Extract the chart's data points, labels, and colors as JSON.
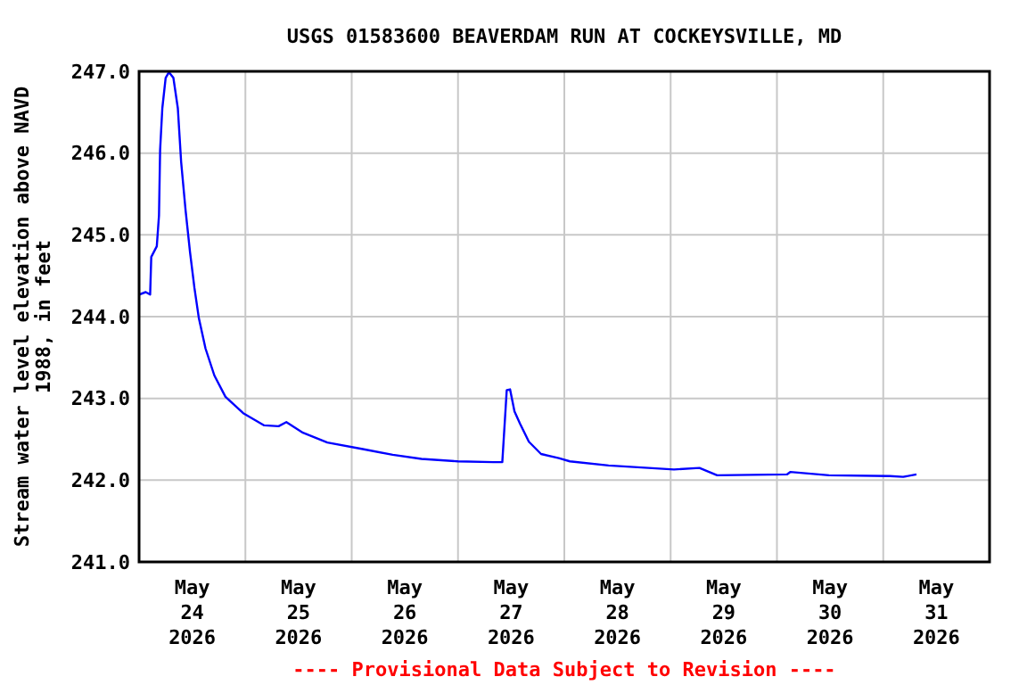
{
  "chart_data": {
    "type": "line",
    "title": "USGS 01583600 BEAVERDAM RUN AT COCKEYSVILLE, MD",
    "ylabel": "Stream water level elevation above NAVD\n1988, in feet",
    "annotations": [
      "---- Provisional Data Subject to Revision ----"
    ],
    "x": [
      "2026-05-24T00:00",
      "2026-05-24T01:30",
      "2026-05-24T02:30",
      "2026-05-24T02:45",
      "2026-05-24T04:00",
      "2026-05-24T04:30",
      "2026-05-24T04:45",
      "2026-05-24T05:15",
      "2026-05-24T06:00",
      "2026-05-24T06:45",
      "2026-05-24T07:45",
      "2026-05-24T08:45",
      "2026-05-24T09:30",
      "2026-05-24T10:30",
      "2026-05-24T11:30",
      "2026-05-24T12:30",
      "2026-05-24T13:30",
      "2026-05-24T15:00",
      "2026-05-24T17:00",
      "2026-05-24T19:30",
      "2026-05-24T23:30",
      "2026-05-25T04:15",
      "2026-05-25T07:30",
      "2026-05-25T09:15",
      "2026-05-25T13:00",
      "2026-05-25T18:30",
      "2026-05-26T02:30",
      "2026-05-26T09:15",
      "2026-05-26T15:45",
      "2026-05-27T00:00",
      "2026-05-27T08:00",
      "2026-05-27T10:00",
      "2026-05-27T11:00",
      "2026-05-27T11:45",
      "2026-05-27T12:45",
      "2026-05-27T14:00",
      "2026-05-27T16:00",
      "2026-05-27T18:45",
      "2026-05-27T22:45",
      "2026-05-28T01:15",
      "2026-05-28T10:00",
      "2026-05-29T00:45",
      "2026-05-29T06:30",
      "2026-05-29T10:30",
      "2026-05-30T02:15",
      "2026-05-30T03:00",
      "2026-05-30T11:45",
      "2026-05-31T01:30",
      "2026-05-31T04:30",
      "2026-05-31T07:30"
    ],
    "series": [
      {
        "color": "#0000ff",
        "values": [
          244.27,
          244.3,
          244.27,
          244.73,
          244.86,
          245.24,
          246.04,
          246.55,
          246.92,
          246.99,
          246.92,
          246.55,
          245.89,
          245.3,
          244.79,
          244.35,
          243.98,
          243.61,
          243.28,
          243.02,
          242.82,
          242.67,
          242.66,
          242.71,
          242.58,
          242.46,
          242.38,
          242.31,
          242.26,
          242.23,
          242.22,
          242.22,
          243.1,
          243.11,
          242.84,
          242.69,
          242.47,
          242.32,
          242.27,
          242.23,
          242.18,
          242.13,
          242.15,
          242.06,
          242.07,
          242.1,
          242.06,
          242.05,
          242.04,
          242.07
        ]
      }
    ],
    "xlim": [
      "2026-05-24T00:00",
      "2026-06-01T00:00"
    ],
    "xticks": [
      {
        "value": "2026-05-25T00:00",
        "label": null
      },
      {
        "value": "2026-05-26T00:00",
        "label": null
      },
      {
        "value": "2026-05-27T00:00",
        "label": null
      },
      {
        "value": "2026-05-28T00:00",
        "label": null
      },
      {
        "value": "2026-05-29T00:00",
        "label": null
      },
      {
        "value": "2026-05-30T00:00",
        "label": null
      },
      {
        "value": "2026-05-31T00:00",
        "label": null
      },
      {
        "value": "2026-05-24T12:00",
        "label": "May\n24\n2026"
      },
      {
        "value": "2026-05-25T12:00",
        "label": "May\n25\n2026"
      },
      {
        "value": "2026-05-26T12:00",
        "label": "May\n26\n2026"
      },
      {
        "value": "2026-05-27T12:00",
        "label": "May\n27\n2026"
      },
      {
        "value": "2026-05-28T12:00",
        "label": "May\n28\n2026"
      },
      {
        "value": "2026-05-29T12:00",
        "label": "May\n29\n2026"
      },
      {
        "value": "2026-05-30T12:00",
        "label": "May\n30\n2026"
      },
      {
        "value": "2026-05-31T12:00",
        "label": "May\n31\n2026"
      }
    ],
    "ylim": [
      241,
      247
    ],
    "yticks": [
      {
        "value": 241,
        "label": "241.0"
      },
      {
        "value": 242,
        "label": "242.0"
      },
      {
        "value": 243,
        "label": "243.0"
      },
      {
        "value": 244,
        "label": "244.0"
      },
      {
        "value": 245,
        "label": "245.0"
      },
      {
        "value": 246,
        "label": "246.0"
      },
      {
        "value": 247,
        "label": "247.0"
      }
    ],
    "grid": true,
    "line_style": "solid",
    "marker": "none"
  }
}
